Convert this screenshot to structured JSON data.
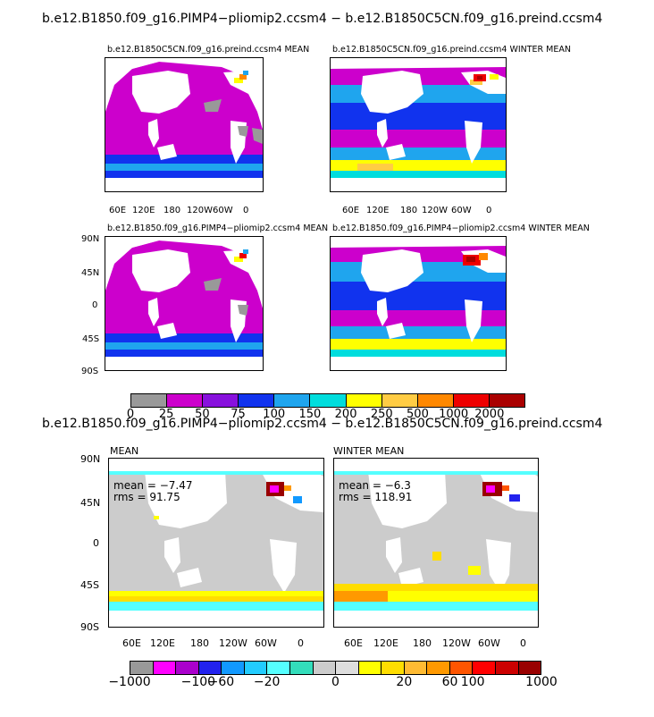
{
  "main_title": "b.e12.B1850.f09_g16.PIMP4−pliomip2.ccsm4 − b.e12.B1850C5CN.f09_g16.preind.ccsm4",
  "panels": [
    {
      "title": "b.e12.B1850C5CN.f09_g16.preind.ccsm4 MEAN",
      "corner": "m"
    },
    {
      "title": "b.e12.B1850C5CN.f09_g16.preind.ccsm4 WINTER MEAN",
      "corner": "m"
    },
    {
      "title": "b.e12.B1850.f09_g16.PIMP4−pliomip2.ccsm4 MEAN",
      "corner": ""
    },
    {
      "title": "b.e12.B1850.f09_g16.PIMP4−pliomip2.ccsm4 WINTER MEAN",
      "corner": ""
    }
  ],
  "lon_ticks": [
    "60E",
    "120E",
    "180",
    "120W",
    "60W",
    "0"
  ],
  "lat_ticks": [
    "90N",
    "45N",
    "0",
    "45S",
    "90S"
  ],
  "colorbar_top": {
    "labels": [
      "0",
      "25",
      "50",
      "75",
      "100",
      "150",
      "200",
      "250",
      "500",
      "1000",
      "2000"
    ],
    "colors": [
      "#999999",
      "#cc00cc",
      "#8811dd",
      "#1133ee",
      "#1fa5ee",
      "#00dddd",
      "#ffff00",
      "#ffcc44",
      "#ff8800",
      "#ee0000",
      "#aa0000"
    ]
  },
  "diff_title": "b.e12.B1850.f09_g16.PIMP4−pliomip2.ccsm4 − b.e12.B1850C5CN.f09_g16.preind.ccsm4",
  "diff_panels": [
    {
      "title": "MEAN",
      "mean": "mean = −7.47",
      "rms": "rms = 91.75"
    },
    {
      "title": "WINTER MEAN",
      "mean": "mean = −6.3",
      "rms": "rms = 118.91"
    }
  ],
  "colorbar_bottom": {
    "labels": [
      "−1000",
      "−100",
      "−60",
      "−20",
      "0",
      "20",
      "60",
      "100",
      "1000"
    ],
    "colors": [
      "#999999",
      "#ff00ff",
      "#aa00cc",
      "#2222ee",
      "#1199ff",
      "#22ccff",
      "#55ffff",
      "#33ddbb",
      "#cccccc",
      "#dddddd",
      "#ffff00",
      "#ffdd00",
      "#ffbb33",
      "#ff9900",
      "#ff5500",
      "#ff0000",
      "#cc0000",
      "#990000"
    ]
  }
}
